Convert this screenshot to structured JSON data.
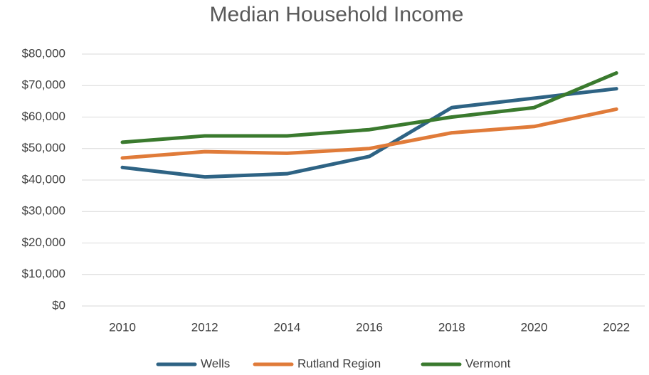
{
  "chart_data": {
    "type": "line",
    "title": "Median Household Income",
    "categories": [
      "2010",
      "2012",
      "2014",
      "2016",
      "2018",
      "2020",
      "2022"
    ],
    "series": [
      {
        "name": "Wells",
        "color": "#2e6384",
        "values": [
          44000,
          41000,
          42000,
          47500,
          63000,
          66000,
          69000
        ]
      },
      {
        "name": "Rutland Region",
        "color": "#e07b39",
        "values": [
          47000,
          49000,
          48500,
          50000,
          55000,
          57000,
          62500
        ]
      },
      {
        "name": "Vermont",
        "color": "#3a7a2e",
        "values": [
          52000,
          54000,
          54000,
          56000,
          60000,
          63000,
          74000
        ]
      }
    ],
    "ylim": [
      0,
      80000
    ],
    "yticks": [
      {
        "value": 0,
        "label": "$0"
      },
      {
        "value": 10000,
        "label": "$10,000"
      },
      {
        "value": 20000,
        "label": "$20,000"
      },
      {
        "value": 30000,
        "label": "$30,000"
      },
      {
        "value": 40000,
        "label": "$40,000"
      },
      {
        "value": 50000,
        "label": "$50,000"
      },
      {
        "value": 60000,
        "label": "$60,000"
      },
      {
        "value": 70000,
        "label": "$70,000"
      },
      {
        "value": 80000,
        "label": "$80,000"
      }
    ],
    "grid": true,
    "legend": "bottom"
  }
}
